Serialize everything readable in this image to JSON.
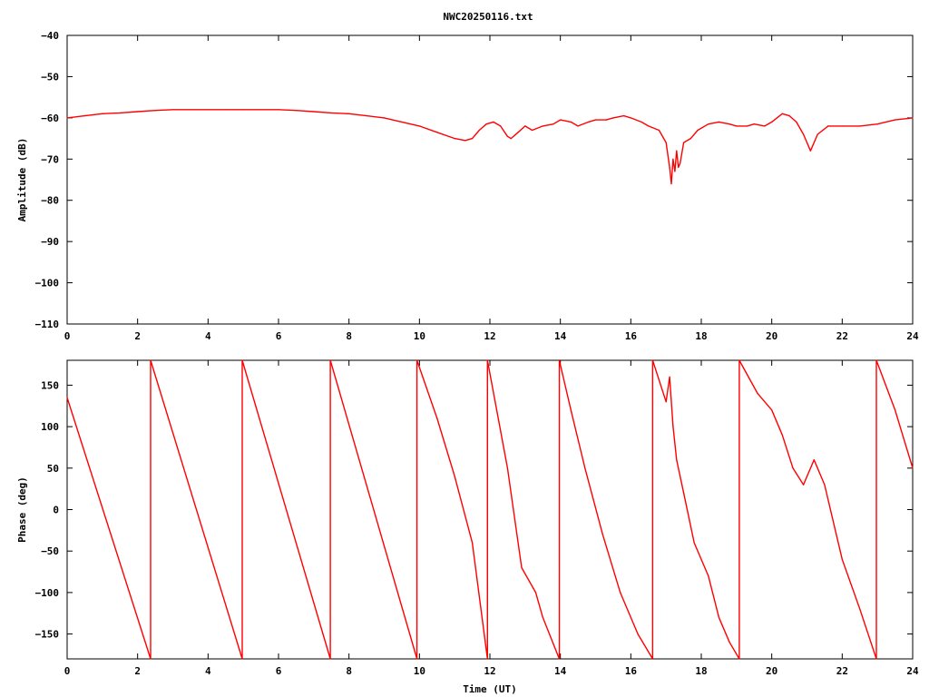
{
  "title": "NWC20250116.txt",
  "colors": {
    "trace": "#ff0000",
    "axis": "#000000",
    "background": "#ffffff"
  },
  "chart_data": [
    {
      "type": "line",
      "ylabel": "Amplitude (dB)",
      "xlabel": "",
      "xlim": [
        0,
        24
      ],
      "ylim": [
        -110,
        -40
      ],
      "xticks": [
        0,
        2,
        4,
        6,
        8,
        10,
        12,
        14,
        16,
        18,
        20,
        22,
        24
      ],
      "yticks": [
        -110,
        -100,
        -90,
        -80,
        -70,
        -60,
        -50,
        -40
      ],
      "grid": false,
      "series": [
        {
          "x": [
            0,
            0.5,
            1,
            1.5,
            2,
            2.5,
            3,
            3.5,
            4,
            4.5,
            5,
            5.5,
            6,
            6.5,
            7,
            7.5,
            8,
            8.5,
            9,
            9.5,
            10,
            10.5,
            11,
            11.3,
            11.5,
            11.7,
            11.9,
            12.1,
            12.3,
            12.5,
            12.6,
            12.8,
            13,
            13.2,
            13.5,
            13.8,
            14,
            14.3,
            14.5,
            14.8,
            15,
            15.3,
            15.5,
            15.8,
            16,
            16.3,
            16.5,
            16.8,
            17,
            17.1,
            17.15,
            17.2,
            17.25,
            17.3,
            17.35,
            17.4,
            17.5,
            17.7,
            17.9,
            18.2,
            18.5,
            18.8,
            19,
            19.3,
            19.5,
            19.8,
            20,
            20.3,
            20.5,
            20.7,
            20.9,
            21.1,
            21.3,
            21.6,
            22,
            22.5,
            23,
            23.5,
            24
          ],
          "y": [
            -60,
            -59.5,
            -59,
            -58.8,
            -58.5,
            -58.2,
            -58,
            -58,
            -58,
            -58,
            -58,
            -58,
            -58,
            -58.2,
            -58.5,
            -58.8,
            -59,
            -59.5,
            -60,
            -61,
            -62,
            -63.5,
            -65,
            -65.5,
            -65,
            -63,
            -61.5,
            -61,
            -62,
            -64.5,
            -65,
            -63.5,
            -62,
            -63,
            -62,
            -61.5,
            -60.5,
            -61,
            -62,
            -61,
            -60.5,
            -60.5,
            -60,
            -59.5,
            -60,
            -61,
            -62,
            -63,
            -66,
            -72,
            -76,
            -70,
            -73,
            -68,
            -72,
            -71,
            -66,
            -65,
            -63,
            -61.5,
            -61,
            -61.5,
            -62,
            -62,
            -61.5,
            -62,
            -61,
            -59,
            -59.5,
            -61,
            -64,
            -68,
            -64,
            -62,
            -62,
            -62,
            -61.5,
            -60.5,
            -60
          ]
        }
      ]
    },
    {
      "type": "line",
      "ylabel": "Phase (deg)",
      "xlabel": "Time (UT)",
      "xlim": [
        0,
        24
      ],
      "ylim": [
        -180,
        180
      ],
      "xticks": [
        0,
        2,
        4,
        6,
        8,
        10,
        12,
        14,
        16,
        18,
        20,
        22,
        24
      ],
      "yticks": [
        -150,
        -100,
        -50,
        0,
        50,
        100,
        150
      ],
      "grid": false,
      "series": [
        {
          "x": [
            0,
            2.37,
            2.37,
            4.97,
            4.97,
            7.47,
            7.47,
            9.93,
            9.93,
            10.5,
            11.0,
            11.5,
            11.93,
            11.93,
            12.5,
            12.9,
            13.3,
            13.5,
            13.97,
            13.97,
            14.3,
            14.7,
            15.2,
            15.7,
            16.2,
            16.62,
            16.62,
            17.0,
            17.1,
            17.2,
            17.3,
            17.5,
            17.8,
            18.2,
            18.5,
            18.8,
            19.08,
            19.08,
            19.6,
            20.0,
            20.3,
            20.6,
            20.9,
            21.2,
            21.5,
            22.0,
            22.5,
            22.97,
            22.97,
            23.5,
            24
          ],
          "y": [
            135,
            -180,
            180,
            -180,
            180,
            -180,
            180,
            -180,
            180,
            110,
            40,
            -40,
            -180,
            180,
            50,
            -70,
            -100,
            -130,
            -180,
            180,
            120,
            50,
            -30,
            -100,
            -150,
            -180,
            180,
            130,
            160,
            100,
            60,
            20,
            -40,
            -80,
            -130,
            -160,
            -180,
            180,
            140,
            120,
            90,
            50,
            30,
            60,
            30,
            -60,
            -120,
            -180,
            180,
            120,
            50
          ]
        }
      ]
    }
  ]
}
